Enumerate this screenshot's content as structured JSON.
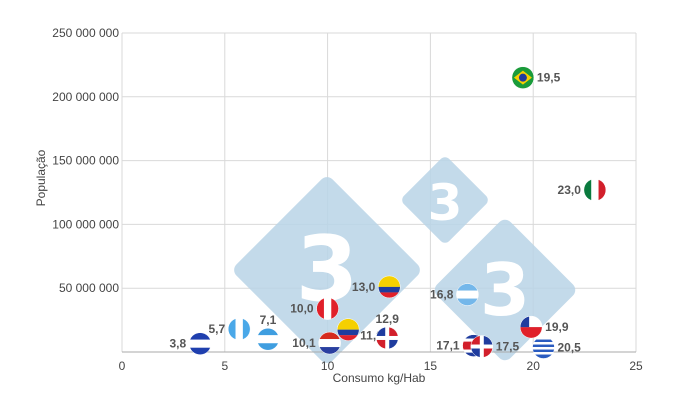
{
  "chart_data": {
    "type": "scatter",
    "title": "",
    "xlabel": "Consumo kg/Hab",
    "ylabel": "População",
    "xlim": [
      0,
      25
    ],
    "ylim": [
      0,
      250000000
    ],
    "x_ticks": [
      "0",
      "5",
      "10",
      "15",
      "20",
      "25"
    ],
    "y_ticks": [
      "250 000 000",
      "200 000 000",
      "150 000 000",
      "100 000 000",
      "50 000 000"
    ],
    "grid": true,
    "legend": null,
    "marker": "country-flag",
    "points": [
      {
        "country": "El Salvador",
        "x": 3.8,
        "y": 6500000,
        "label": "3,8",
        "label_pos": "left"
      },
      {
        "country": "Guatemala",
        "x": 5.7,
        "y": 18000000,
        "label": "5,7",
        "label_pos": "left"
      },
      {
        "country": "Honduras",
        "x": 7.1,
        "y": 10000000,
        "label": "7,1",
        "label_pos": "top"
      },
      {
        "country": "Peru",
        "x": 10.0,
        "y": 34000000,
        "label": "10,0",
        "label_pos": "left"
      },
      {
        "country": "Paraguay",
        "x": 10.1,
        "y": 7000000,
        "label": "10,1",
        "label_pos": "left"
      },
      {
        "country": "Ecuador",
        "x": 11.0,
        "y": 17500000,
        "label": "11,0",
        "label_pos": "bottom"
      },
      {
        "country": "Dominican Republic",
        "x": 12.9,
        "y": 11000000,
        "label": "12,9",
        "label_pos": "top"
      },
      {
        "country": "Colombia",
        "x": 13.0,
        "y": 51000000,
        "label": "13,0",
        "label_pos": "left"
      },
      {
        "country": "Argentina",
        "x": 16.8,
        "y": 45000000,
        "label": "16,8",
        "label_pos": "left"
      },
      {
        "country": "Costa Rica",
        "x": 17.1,
        "y": 5000000,
        "label": "17,1",
        "label_pos": "left"
      },
      {
        "country": "Panama",
        "x": 17.5,
        "y": 4300000,
        "label": "17,5",
        "label_pos": "right"
      },
      {
        "country": "Brazil",
        "x": 19.5,
        "y": 215000000,
        "label": "19,5",
        "label_pos": "right"
      },
      {
        "country": "Chile",
        "x": 19.9,
        "y": 19500000,
        "label": "19,9",
        "label_pos": "right"
      },
      {
        "country": "Uruguay",
        "x": 20.5,
        "y": 3500000,
        "label": "20,5",
        "label_pos": "right"
      },
      {
        "country": "Mexico",
        "x": 23.0,
        "y": 127000000,
        "label": "23,0",
        "label_pos": "left"
      }
    ]
  },
  "watermark": {
    "text": "3",
    "color": "#b9d3e6"
  },
  "colors": {
    "grid": "#d9d9d9",
    "text": "#444444",
    "label": "#555555"
  }
}
